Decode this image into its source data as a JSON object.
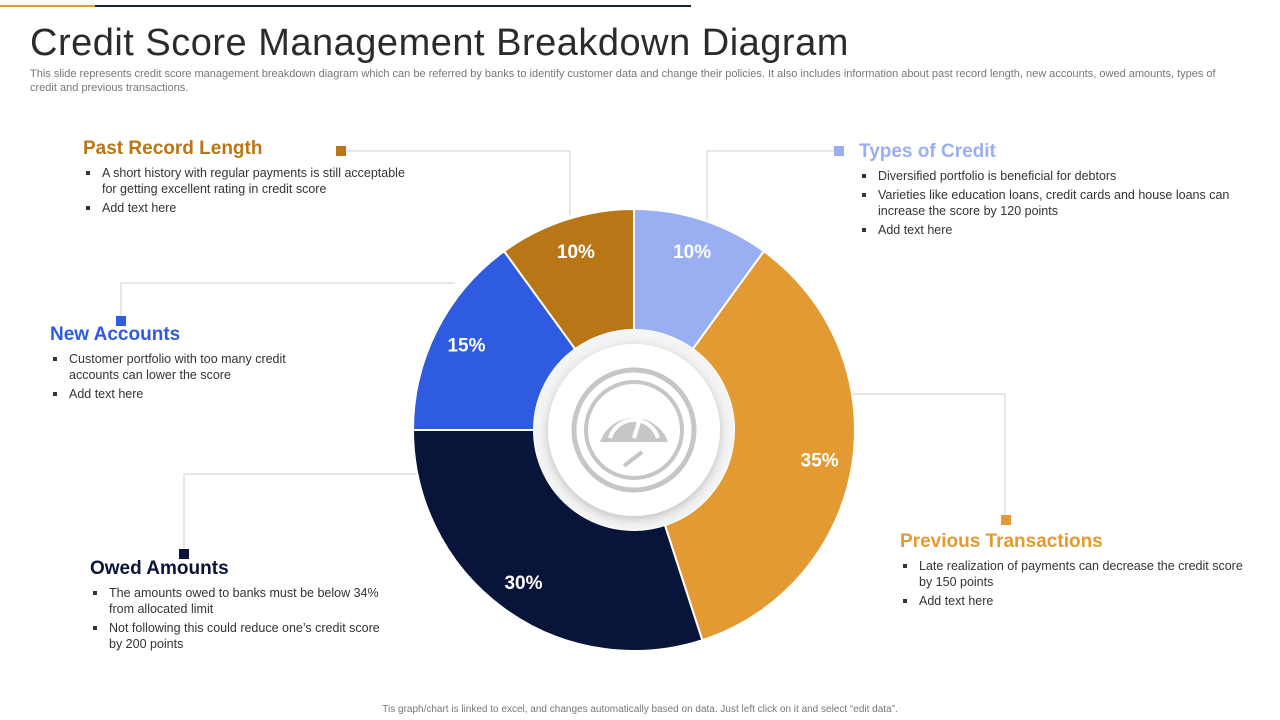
{
  "slide": {
    "title": "Credit Score Management Breakdown Diagram",
    "subtitle": "This slide represents credit score management breakdown diagram which can be referred by banks to identify customer data and change their policies. It also includes information about past record length, new accounts, owed amounts, types of credit and previous transactions.",
    "footer": "Tis graph/chart is linked to excel, and changes automatically based on data. Just left click on it and select “edit data”."
  },
  "chart_data": {
    "type": "pie",
    "categories": [
      "Types of Credit",
      "Previous Transactions",
      "Owed Amounts",
      "New Accounts",
      "Past Record Length"
    ],
    "values": [
      10,
      35,
      30,
      15,
      10
    ],
    "labels": [
      "10%",
      "35%",
      "30%",
      "15%",
      "10%"
    ],
    "colors": [
      "#9aaef2",
      "#e39a33",
      "#08143a",
      "#2f5be0",
      "#b87616"
    ],
    "title": ""
  },
  "callouts": {
    "types_of_credit": {
      "title": "Types of Credit",
      "color": "#9aaef2",
      "bullets": [
        "Diversified  portfolio is beneficial for debtors",
        "Varieties like education loans, credit cards and house loans can increase the score by 120 points",
        "Add text here"
      ]
    },
    "previous_transactions": {
      "title": "Previous Transactions",
      "color": "#e39a33",
      "bullets": [
        "Late realization of payments can decrease the credit score by 150 points",
        "Add text here"
      ]
    },
    "owed_amounts": {
      "title": "Owed Amounts",
      "color": "#08143a",
      "bullets": [
        "The amounts owed to banks must be below 34% from allocated limit",
        "Not following  this could reduce one’s credit score by 200 points"
      ]
    },
    "new_accounts": {
      "title": "New Accounts",
      "color": "#2f5be0",
      "bullets": [
        "Customer portfolio with too many credit accounts can lower the score",
        "Add text here"
      ]
    },
    "past_record_length": {
      "title": "Past Record Length",
      "color": "#b87616",
      "bullets": [
        "A short history with regular  payments is still acceptable for getting excellent rating in credit score",
        "Add text here"
      ]
    }
  },
  "icons": {
    "center": "speedometer-icon"
  }
}
